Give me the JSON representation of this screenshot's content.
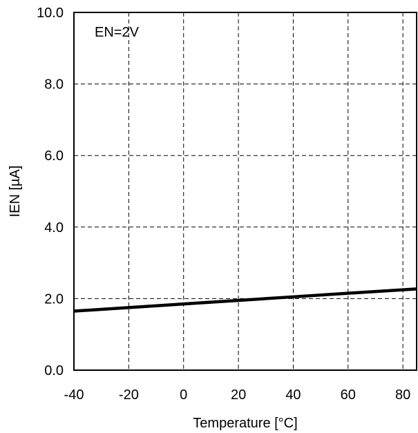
{
  "chart_data": {
    "type": "line",
    "title": "",
    "xlabel": "Temperature [°C]",
    "ylabel": "IEN [µA]",
    "xlim": [
      -40,
      85
    ],
    "ylim": [
      0,
      10
    ],
    "x_ticks": [
      -40,
      -20,
      0,
      20,
      40,
      60,
      80
    ],
    "x_tick_labels": [
      "-40",
      "-20",
      "0",
      "20",
      "40",
      "60",
      "80"
    ],
    "y_ticks": [
      0,
      2,
      4,
      6,
      8,
      10
    ],
    "y_tick_labels": [
      "0.0",
      "2.0",
      "4.0",
      "6.0",
      "8.0",
      "10.0"
    ],
    "grid": true,
    "annotation": "EN=2V",
    "series": [
      {
        "color": "#000000",
        "x": [
          -40,
          -20,
          0,
          20,
          40,
          60,
          85
        ],
        "y": [
          1.65,
          1.75,
          1.85,
          1.95,
          2.05,
          2.15,
          2.27
        ]
      }
    ]
  }
}
